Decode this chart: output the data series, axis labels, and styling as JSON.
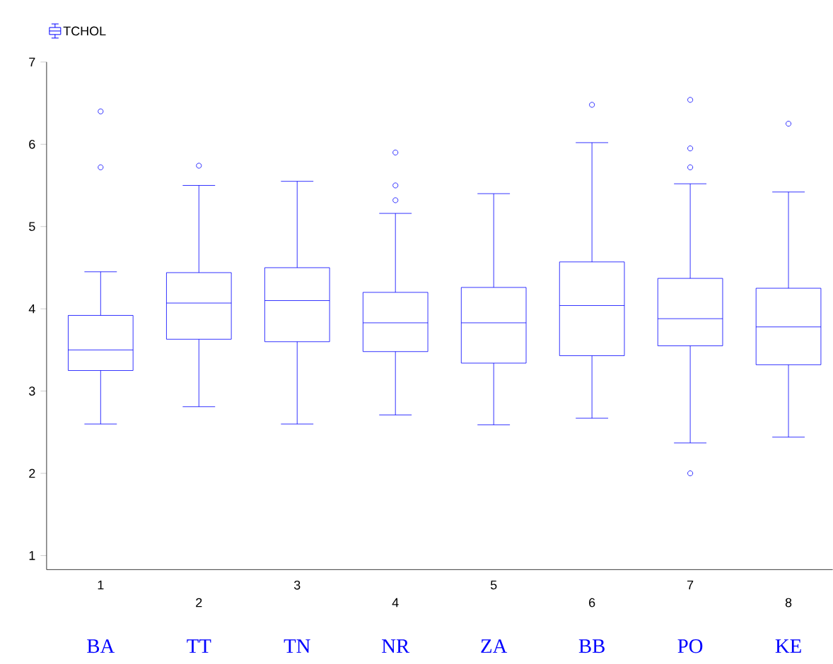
{
  "chart_data": {
    "type": "box",
    "categories": [
      "1",
      "2",
      "3",
      "4",
      "5",
      "6",
      "7",
      "8"
    ],
    "series": [
      {
        "name": "TCHOL",
        "color": "#0000ff",
        "boxes": [
          {
            "low": 2.6,
            "q1": 3.25,
            "median": 3.5,
            "q3": 3.92,
            "high": 4.45,
            "outliers": [
              6.4,
              5.72
            ]
          },
          {
            "low": 2.81,
            "q1": 3.63,
            "median": 4.07,
            "q3": 4.44,
            "high": 5.5,
            "outliers": [
              5.74
            ]
          },
          {
            "low": 2.6,
            "q1": 3.6,
            "median": 4.1,
            "q3": 4.5,
            "high": 5.55
          },
          {
            "low": 2.71,
            "q1": 3.48,
            "median": 3.83,
            "q3": 4.2,
            "high": 5.16,
            "outliers": [
              5.9,
              5.5,
              5.32
            ]
          },
          {
            "low": 2.59,
            "q1": 3.34,
            "median": 3.83,
            "q3": 4.26,
            "high": 5.4
          },
          {
            "low": 2.67,
            "q1": 3.43,
            "median": 4.04,
            "q3": 4.57,
            "high": 6.02,
            "outliers": [
              6.48
            ]
          },
          {
            "low": 2.37,
            "q1": 3.55,
            "median": 3.88,
            "q3": 4.37,
            "high": 5.52,
            "outliers": [
              6.54,
              5.95,
              5.72,
              2.0
            ]
          },
          {
            "low": 2.44,
            "q1": 3.32,
            "median": 3.78,
            "q3": 4.25,
            "high": 5.42,
            "outliers": [
              6.25
            ]
          }
        ]
      }
    ],
    "ylim": [
      0.83,
      7
    ],
    "yticks": [
      1,
      2,
      3,
      4,
      5,
      6,
      7
    ],
    "legend": "top left",
    "annotations": [
      "BA",
      "TT",
      "TN",
      "NR",
      "ZA",
      "BB",
      "PO",
      "KE"
    ]
  }
}
